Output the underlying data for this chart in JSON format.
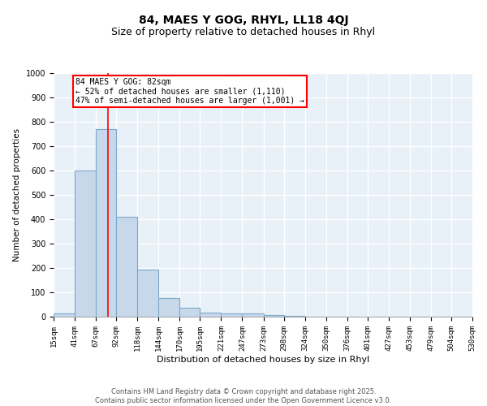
{
  "title": "84, MAES Y GOG, RHYL, LL18 4QJ",
  "subtitle": "Size of property relative to detached houses in Rhyl",
  "xlabel": "Distribution of detached houses by size in Rhyl",
  "ylabel": "Number of detached properties",
  "bin_edges": [
    15,
    41,
    67,
    92,
    118,
    144,
    170,
    195,
    221,
    247,
    273,
    298,
    324,
    350,
    376,
    401,
    427,
    453,
    479,
    504,
    530
  ],
  "bar_heights": [
    13,
    600,
    770,
    410,
    193,
    77,
    38,
    18,
    13,
    13,
    8,
    5,
    0,
    0,
    0,
    0,
    0,
    0,
    0,
    0
  ],
  "bar_color": "#c8d8eb",
  "bar_edge_color": "#7aa8cc",
  "bar_linewidth": 0.8,
  "vline_x": 82,
  "vline_color": "red",
  "vline_linewidth": 1.2,
  "annotation_text": "84 MAES Y GOG: 82sqm\n← 52% of detached houses are smaller (1,110)\n47% of semi-detached houses are larger (1,001) →",
  "annotation_box_color": "red",
  "annotation_text_color": "black",
  "annotation_fontsize": 7,
  "ylim": [
    0,
    1000
  ],
  "yticks": [
    0,
    100,
    200,
    300,
    400,
    500,
    600,
    700,
    800,
    900,
    1000
  ],
  "background_color": "#e8f0f8",
  "grid_color": "white",
  "title_fontsize": 10,
  "subtitle_fontsize": 9,
  "xlabel_fontsize": 8,
  "ylabel_fontsize": 7.5,
  "tick_fontsize": 6.5,
  "ytick_fontsize": 7,
  "footer_text": "Contains HM Land Registry data © Crown copyright and database right 2025.\nContains public sector information licensed under the Open Government Licence v3.0.",
  "footer_fontsize": 6
}
